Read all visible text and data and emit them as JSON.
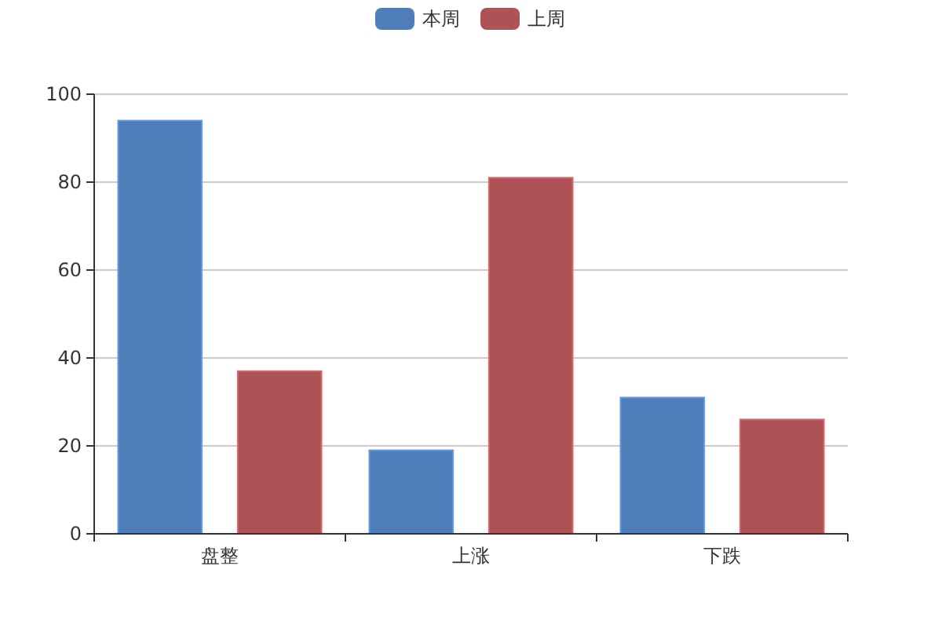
{
  "chart_data": {
    "type": "bar",
    "categories": [
      "盘整",
      "上涨",
      "下跌"
    ],
    "series": [
      {
        "name": "本周",
        "color": "#4e7db9",
        "values": [
          94,
          19,
          31
        ]
      },
      {
        "name": "上周",
        "color": "#ad5357",
        "values": [
          37,
          81,
          26
        ]
      }
    ],
    "ylim": [
      0,
      100
    ],
    "yticks": [
      0,
      20,
      40,
      60,
      80,
      100
    ],
    "grid": "y",
    "legend": "top"
  }
}
